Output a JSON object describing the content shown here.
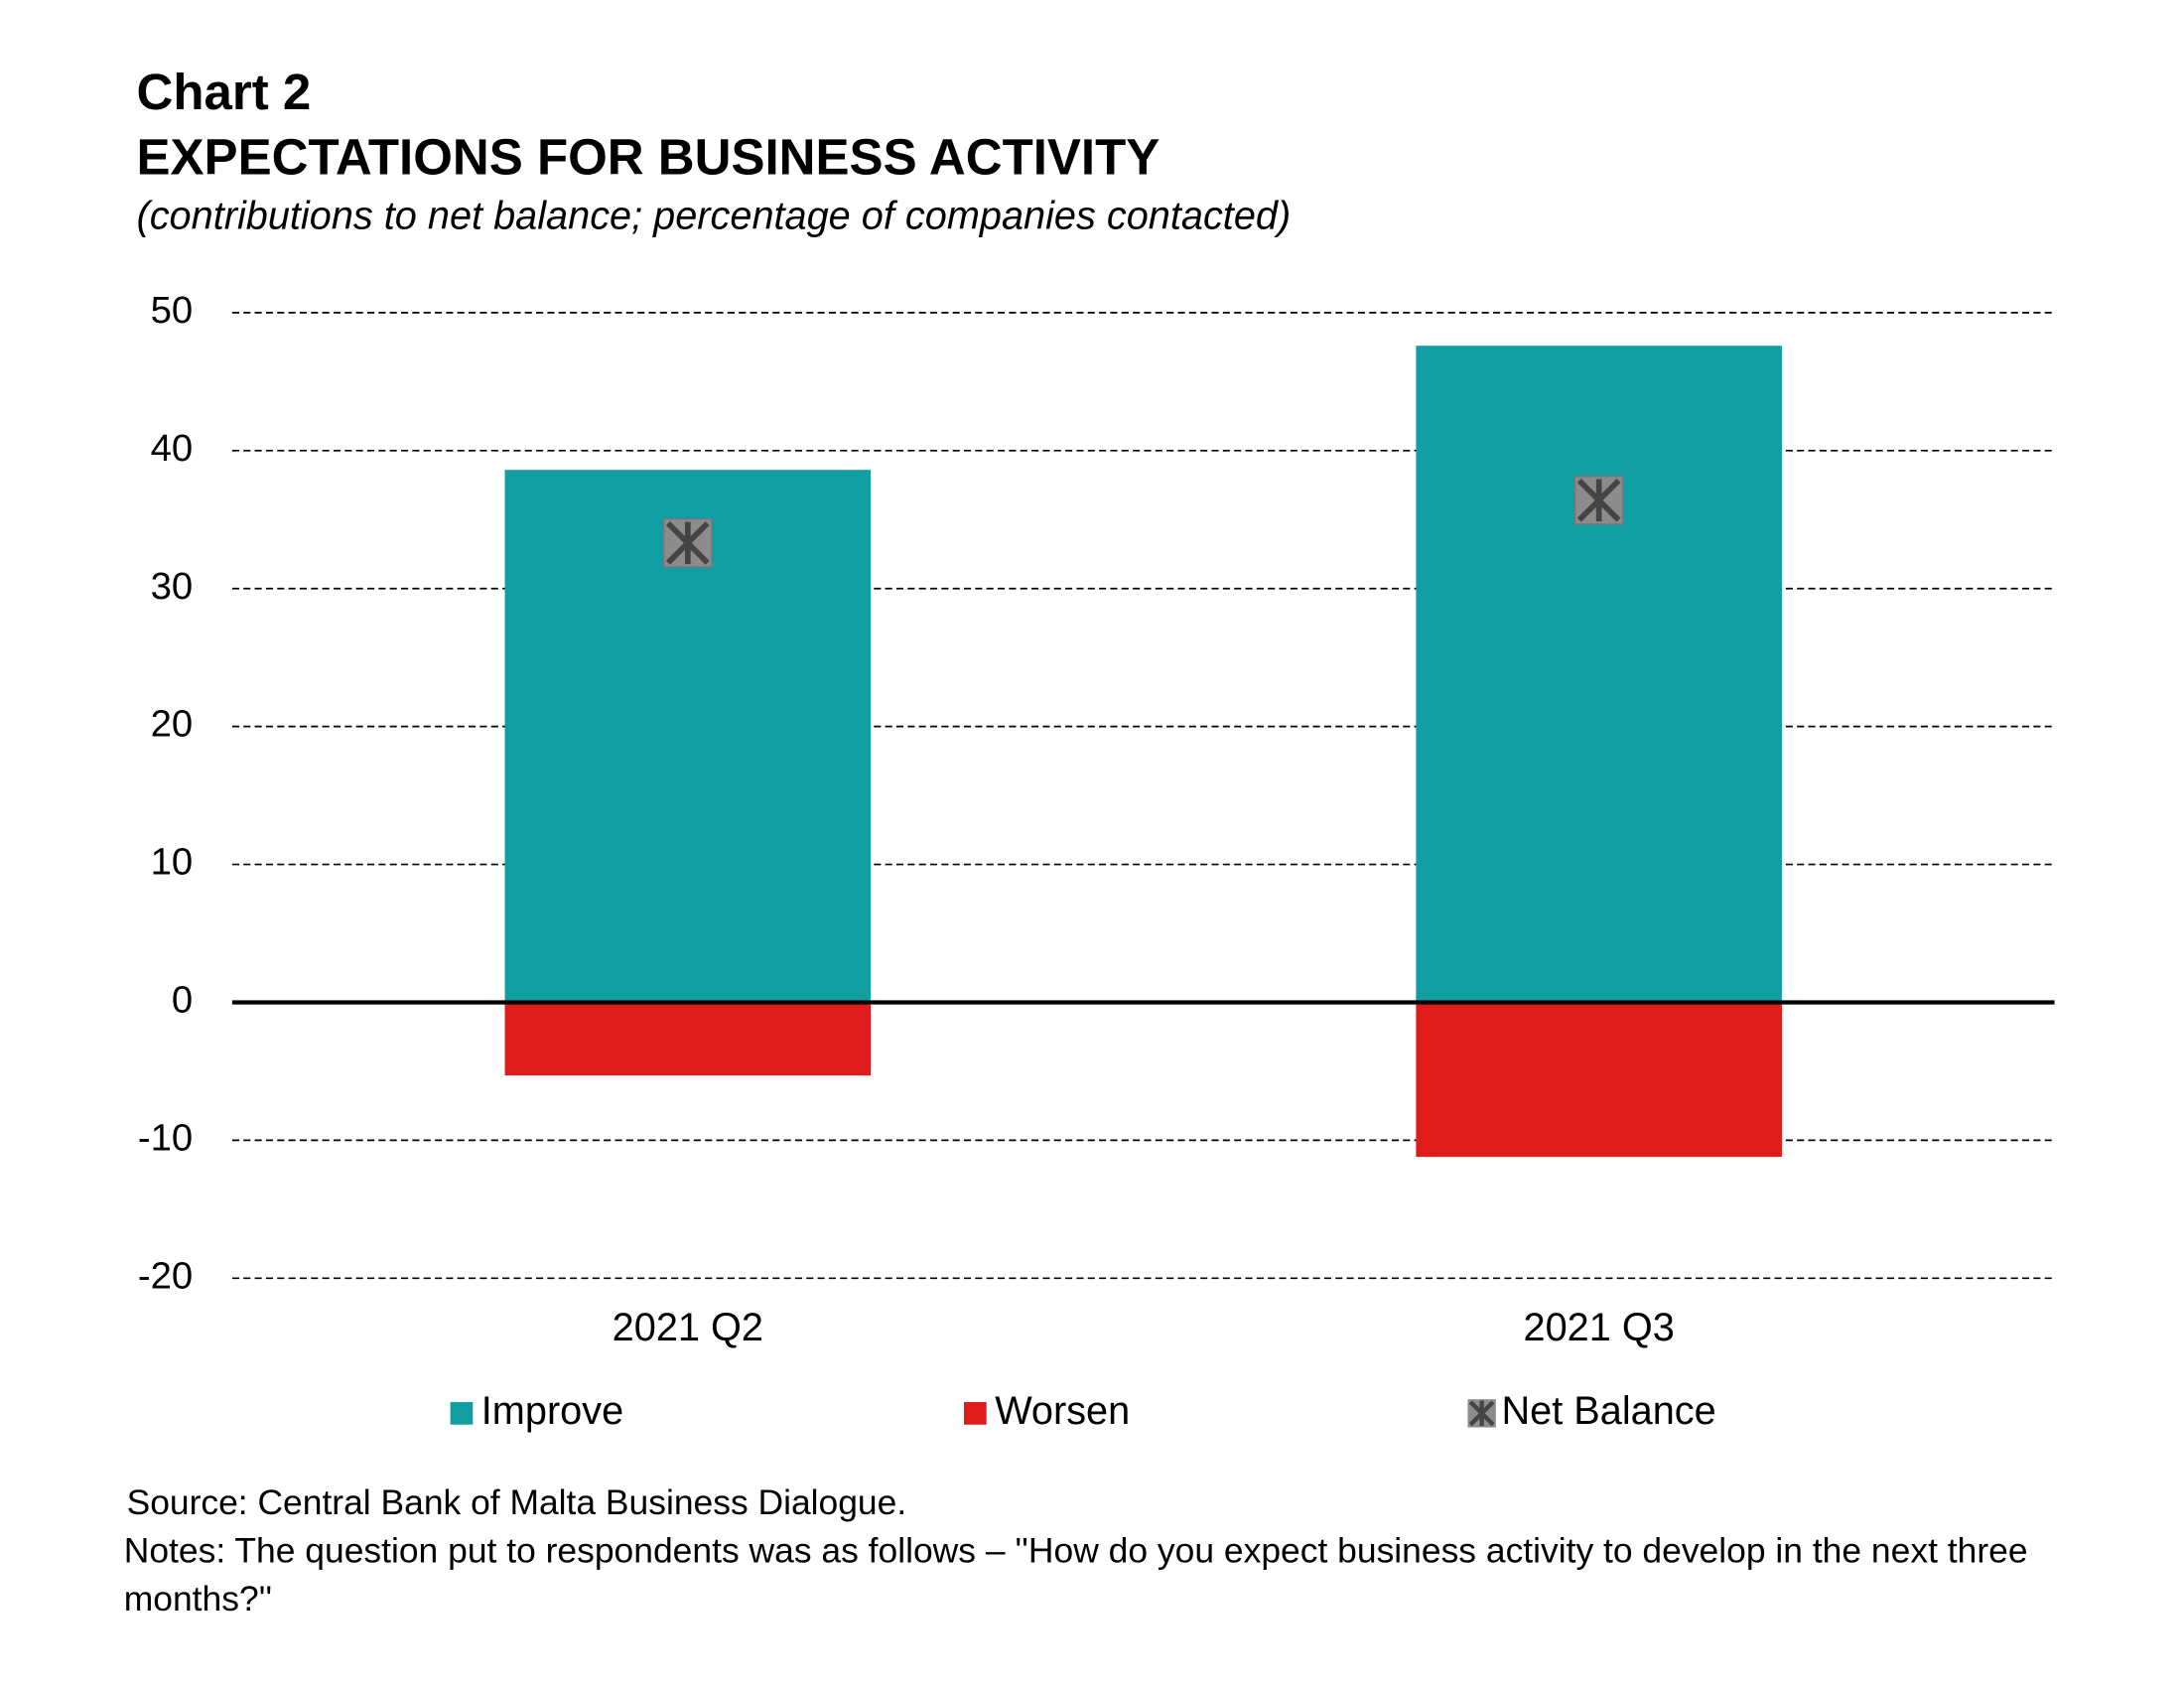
{
  "chart_data": {
    "type": "bar",
    "stacked": true,
    "title": "Chart 2",
    "subtitle": "EXPECTATIONS FOR BUSINESS ACTIVITY",
    "description": "(contributions to net balance; percentage of companies contacted)",
    "categories": [
      "2021 Q2",
      "2021 Q3"
    ],
    "series": [
      {
        "name": "Improve",
        "color": "#109ea2",
        "values": [
          38.6,
          47.6
        ]
      },
      {
        "name": "Worsen",
        "color": "#e01b1b",
        "values": [
          -5.3,
          -11.2
        ]
      },
      {
        "name": "Net Balance",
        "type": "marker",
        "color": "#8c8c8c",
        "values": [
          33.3,
          36.4
        ]
      }
    ],
    "ylim": [
      -20,
      50
    ],
    "yticks": [
      -20,
      -10,
      0,
      10,
      20,
      30,
      40,
      50
    ],
    "grid": true,
    "legend": "bottom",
    "source": "Source: Central Bank of Malta Business Dialogue.",
    "notes": "Notes: The question put to respondents was as follows – ''How do you expect business activity to develop in the next three months?''"
  }
}
